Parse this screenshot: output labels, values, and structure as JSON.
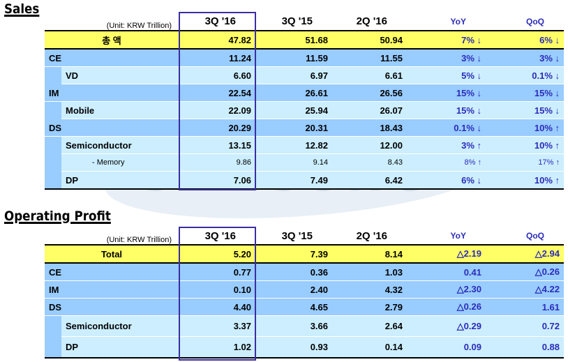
{
  "sales": {
    "title": "Sales",
    "unit": "(Unit: KRW Trillion)",
    "headers": [
      "3Q '16",
      "3Q '15",
      "2Q '16",
      "YoY",
      "QoQ"
    ],
    "rows": [
      {
        "label": "총       액",
        "v": [
          "47.82",
          "51.68",
          "50.94",
          "7% ↓",
          "6% ↓"
        ]
      },
      {
        "label": "CE",
        "v": [
          "11.24",
          "11.59",
          "11.55",
          "3% ↓",
          "3% ↓"
        ]
      },
      {
        "label": "VD",
        "v": [
          "6.60",
          "6.97",
          "6.61",
          "5% ↓",
          "0.1% ↓"
        ]
      },
      {
        "label": "IM",
        "v": [
          "22.54",
          "26.61",
          "26.56",
          "15% ↓",
          "15% ↓"
        ]
      },
      {
        "label": "Mobile",
        "v": [
          "22.09",
          "25.94",
          "26.07",
          "15% ↓",
          "15% ↓"
        ]
      },
      {
        "label": "DS",
        "v": [
          "20.29",
          "20.31",
          "18.43",
          "0.1% ↓",
          "10% ↑"
        ]
      },
      {
        "label": "Semiconductor",
        "v": [
          "13.15",
          "12.82",
          "12.00",
          "3% ↑",
          "10% ↑"
        ]
      },
      {
        "label": "- Memory",
        "v": [
          "9.86",
          "9.14",
          "8.43",
          "8% ↑",
          "17% ↑"
        ]
      },
      {
        "label": "DP",
        "v": [
          "7.06",
          "7.49",
          "6.42",
          "6% ↓",
          "10% ↑"
        ]
      }
    ]
  },
  "op": {
    "title": "Operating Profit",
    "unit": "(Unit: KRW Trillion)",
    "headers": [
      "3Q '16",
      "3Q '15",
      "2Q '16",
      "YoY",
      "QoQ"
    ],
    "rows": [
      {
        "label": "Total",
        "v": [
          "5.20",
          "7.39",
          "8.14",
          "△2.19",
          "△2.94"
        ]
      },
      {
        "label": "CE",
        "v": [
          "0.77",
          "0.36",
          "1.03",
          "0.41",
          "△0.26"
        ]
      },
      {
        "label": "IM",
        "v": [
          "0.10",
          "2.40",
          "4.32",
          "△2.30",
          "△4.22"
        ]
      },
      {
        "label": "DS",
        "v": [
          "4.40",
          "4.65",
          "2.79",
          "△0.26",
          "1.61"
        ]
      },
      {
        "label": "Semiconductor",
        "v": [
          "3.37",
          "3.66",
          "2.64",
          "△0.29",
          "0.72"
        ]
      },
      {
        "label": "DP",
        "v": [
          "1.02",
          "0.93",
          "0.14",
          "0.09",
          "0.88"
        ]
      }
    ]
  },
  "colors": {
    "total": "#ffff66",
    "level1": "#99ccff",
    "level2": "#cceeff",
    "percent": "#2b2bb8",
    "highlight": "#3a2ea0"
  }
}
